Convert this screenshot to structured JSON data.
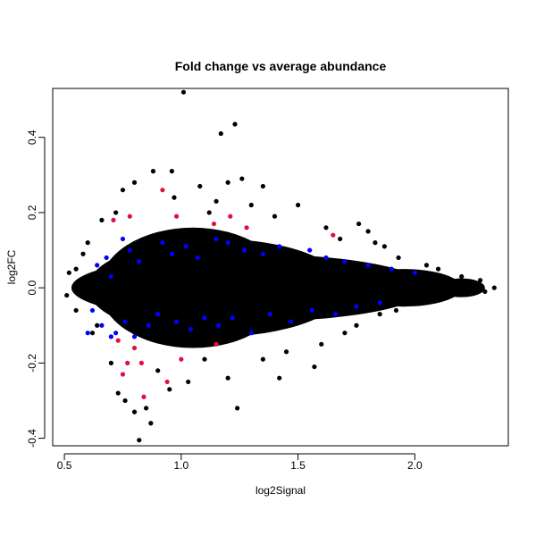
{
  "chart_data": {
    "type": "scatter",
    "title": "Fold change vs average abundance",
    "xlabel": "log2Signal",
    "ylabel": "log2FC",
    "xlim": [
      0.45,
      2.4
    ],
    "ylim": [
      -0.42,
      0.53
    ],
    "x_ticks": [
      0.5,
      1.0,
      1.5,
      2.0
    ],
    "x_tick_labels": [
      "0.5",
      "1.0",
      "1.5",
      "2.0"
    ],
    "y_ticks": [
      -0.4,
      -0.2,
      0.0,
      0.2,
      0.4
    ],
    "y_tick_labels": [
      "-0.4",
      "-0.2",
      "0.0",
      "0.2",
      "0.4"
    ],
    "grid": false,
    "legend": "none",
    "colors": {
      "main": "#000000",
      "blue": "#0000ff",
      "red": "#e0103c"
    },
    "series": [
      {
        "color": "#000000",
        "points": [
          [
            1.01,
            0.52
          ],
          [
            1.17,
            0.41
          ],
          [
            1.23,
            0.435
          ],
          [
            0.96,
            0.31
          ],
          [
            0.88,
            0.31
          ],
          [
            1.26,
            0.29
          ],
          [
            0.8,
            0.28
          ],
          [
            1.35,
            0.27
          ],
          [
            1.08,
            0.27
          ],
          [
            1.2,
            0.28
          ],
          [
            0.75,
            0.26
          ],
          [
            1.5,
            0.22
          ],
          [
            1.3,
            0.22
          ],
          [
            1.76,
            0.17
          ],
          [
            1.8,
            0.15
          ],
          [
            1.83,
            0.12
          ],
          [
            1.87,
            0.11
          ],
          [
            1.93,
            0.08
          ],
          [
            2.05,
            0.06
          ],
          [
            2.1,
            0.05
          ],
          [
            2.2,
            0.03
          ],
          [
            2.28,
            0.02
          ],
          [
            2.34,
            0.0
          ],
          [
            2.3,
            -0.01
          ],
          [
            2.25,
            0.01
          ],
          [
            2.15,
            -0.02
          ],
          [
            1.98,
            -0.04
          ],
          [
            1.92,
            -0.06
          ],
          [
            1.85,
            -0.07
          ],
          [
            1.75,
            -0.1
          ],
          [
            1.6,
            -0.15
          ],
          [
            1.57,
            -0.21
          ],
          [
            1.42,
            -0.24
          ],
          [
            1.24,
            -0.32
          ],
          [
            1.35,
            -0.19
          ],
          [
            1.2,
            -0.24
          ],
          [
            1.03,
            -0.25
          ],
          [
            0.95,
            -0.27
          ],
          [
            0.85,
            -0.32
          ],
          [
            0.8,
            -0.33
          ],
          [
            0.82,
            -0.405
          ],
          [
            0.87,
            -0.36
          ],
          [
            0.76,
            -0.3
          ],
          [
            0.73,
            -0.28
          ],
          [
            0.9,
            -0.22
          ],
          [
            0.7,
            -0.2
          ],
          [
            1.1,
            -0.19
          ],
          [
            0.62,
            -0.12
          ],
          [
            0.55,
            -0.06
          ],
          [
            0.52,
            0.04
          ],
          [
            0.55,
            0.05
          ],
          [
            0.6,
            0.12
          ],
          [
            0.66,
            0.18
          ],
          [
            0.97,
            0.24
          ],
          [
            1.15,
            0.23
          ],
          [
            1.4,
            0.19
          ],
          [
            1.62,
            0.16
          ],
          [
            1.68,
            0.13
          ],
          [
            1.7,
            -0.12
          ],
          [
            0.51,
            -0.02
          ],
          [
            0.58,
            0.09
          ],
          [
            0.64,
            -0.1
          ],
          [
            0.72,
            0.2
          ],
          [
            1.45,
            -0.17
          ],
          [
            1.12,
            0.2
          ]
        ]
      },
      {
        "color": "#0000ff",
        "points": [
          [
            0.64,
            0.06
          ],
          [
            0.7,
            0.03
          ],
          [
            0.75,
            0.13
          ],
          [
            0.78,
            0.1
          ],
          [
            0.82,
            0.07
          ],
          [
            0.92,
            0.12
          ],
          [
            0.96,
            0.09
          ],
          [
            1.02,
            0.11
          ],
          [
            1.07,
            0.08
          ],
          [
            1.15,
            0.13
          ],
          [
            1.2,
            0.12
          ],
          [
            1.27,
            0.1
          ],
          [
            1.35,
            0.09
          ],
          [
            1.42,
            0.11
          ],
          [
            1.55,
            0.1
          ],
          [
            1.62,
            0.08
          ],
          [
            1.7,
            0.07
          ],
          [
            1.8,
            0.06
          ],
          [
            1.9,
            0.05
          ],
          [
            2.0,
            0.04
          ],
          [
            0.62,
            -0.06
          ],
          [
            0.66,
            -0.1
          ],
          [
            0.72,
            -0.12
          ],
          [
            0.76,
            -0.09
          ],
          [
            0.8,
            -0.13
          ],
          [
            0.86,
            -0.1
          ],
          [
            0.9,
            -0.07
          ],
          [
            0.98,
            -0.09
          ],
          [
            1.04,
            -0.11
          ],
          [
            1.1,
            -0.08
          ],
          [
            1.16,
            -0.1
          ],
          [
            1.22,
            -0.08
          ],
          [
            1.3,
            -0.12
          ],
          [
            1.38,
            -0.07
          ],
          [
            1.47,
            -0.09
          ],
          [
            1.56,
            -0.06
          ],
          [
            1.66,
            -0.07
          ],
          [
            1.75,
            -0.05
          ],
          [
            1.85,
            -0.04
          ],
          [
            0.7,
            -0.13
          ],
          [
            0.6,
            -0.12
          ],
          [
            0.68,
            0.08
          ]
        ]
      },
      {
        "color": "#e0103c",
        "points": [
          [
            0.71,
            0.18
          ],
          [
            0.78,
            0.19
          ],
          [
            0.92,
            0.26
          ],
          [
            0.98,
            0.19
          ],
          [
            1.14,
            0.17
          ],
          [
            1.21,
            0.19
          ],
          [
            1.28,
            0.16
          ],
          [
            1.65,
            0.14
          ],
          [
            0.73,
            -0.14
          ],
          [
            0.77,
            -0.2
          ],
          [
            0.75,
            -0.23
          ],
          [
            0.8,
            -0.16
          ],
          [
            0.83,
            -0.2
          ],
          [
            0.84,
            -0.29
          ],
          [
            0.94,
            -0.25
          ],
          [
            1.0,
            -0.19
          ],
          [
            1.15,
            -0.15
          ]
        ]
      }
    ]
  }
}
